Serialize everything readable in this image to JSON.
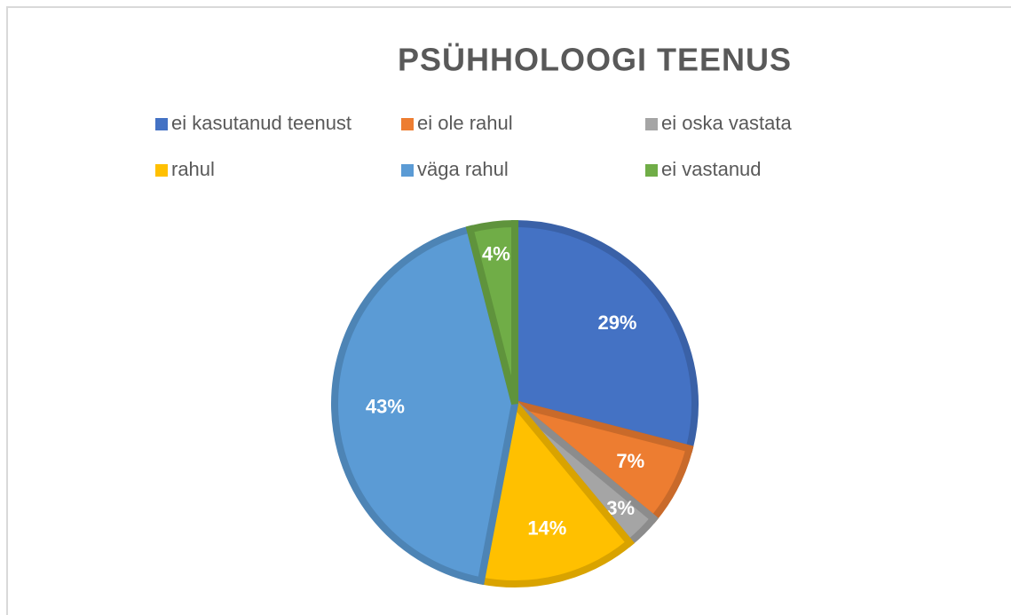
{
  "chart_data": {
    "type": "pie",
    "title": "PSÜHHOLOOGI TEENUS",
    "categories": [
      "ei kasutanud teenust",
      "ei ole rahul",
      "ei oska vastata",
      "rahul",
      "väga rahul",
      "ei vastanud"
    ],
    "values": [
      29,
      7,
      3,
      14,
      43,
      4
    ],
    "value_labels": [
      "29%",
      "7%",
      "3%",
      "14%",
      "43%",
      "4%"
    ],
    "colors": [
      "#4472c4",
      "#ed7d31",
      "#a5a5a5",
      "#ffc000",
      "#5b9bd5",
      "#70ad47"
    ],
    "legend": "top"
  }
}
